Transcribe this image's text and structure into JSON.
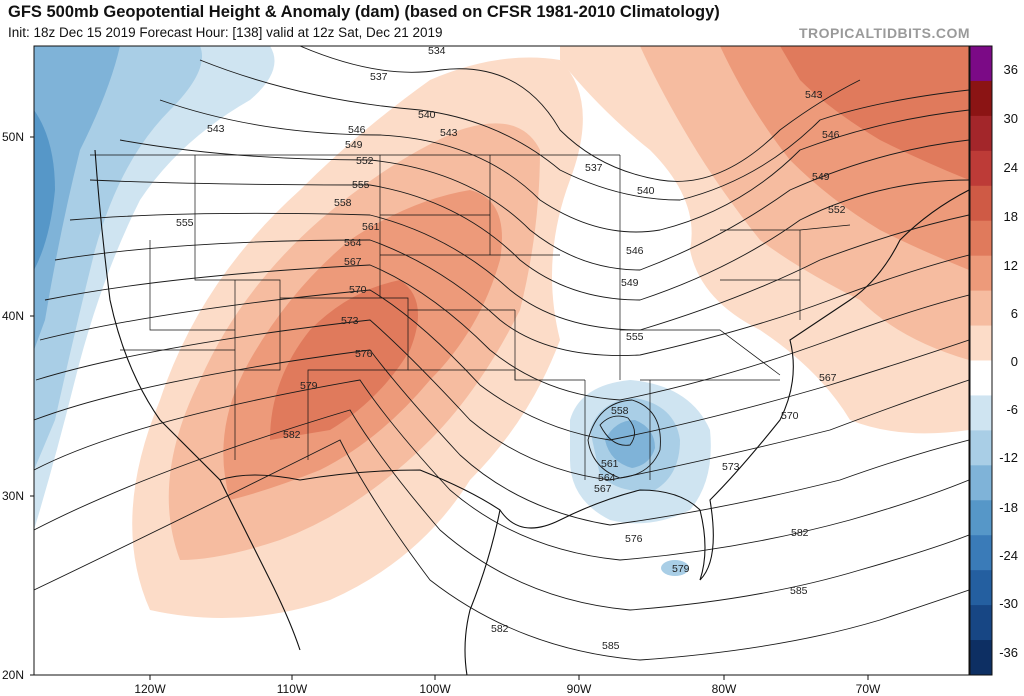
{
  "header": {
    "title": "GFS 500mb Geopotential Height & Anomaly (dam) (based on CFSR 1981-2010 Climatology)",
    "subtitle": "Init: 18z Dec 15 2019   Forecast Hour: [138]   valid at 12z Sat, Dec 21 2019",
    "credit": "TROPICALTIDBITS.COM"
  },
  "map": {
    "lat_labels": [
      "50N",
      "40N",
      "30N",
      "20N"
    ],
    "lon_labels": [
      "120W",
      "110W",
      "100W",
      "90W",
      "80W",
      "70W"
    ],
    "contour_labels": [
      "534",
      "537",
      "540",
      "543",
      "543",
      "543",
      "546",
      "546",
      "549",
      "549",
      "552",
      "552",
      "555",
      "555",
      "555",
      "558",
      "558",
      "561",
      "561",
      "564",
      "564",
      "567",
      "567",
      "567",
      "570",
      "570",
      "573",
      "573",
      "576",
      "576",
      "579",
      "579",
      "582",
      "582",
      "582",
      "585",
      "585",
      "537",
      "540",
      "546",
      "549"
    ]
  },
  "colorbar": {
    "labels": [
      "36",
      "30",
      "24",
      "18",
      "12",
      "6",
      "0",
      "-6",
      "-12",
      "-18",
      "-24",
      "-30",
      "-36"
    ],
    "colors": [
      "#7b0a86",
      "#8b1414",
      "#a3262a",
      "#bd3b37",
      "#cf5a45",
      "#e07a5c",
      "#ed9a7a",
      "#f6bca0",
      "#fcdcc8",
      "#ffffff",
      "#cfe4f1",
      "#a9cee6",
      "#7fb3d8",
      "#5697c8",
      "#3a7bb8",
      "#245fa0",
      "#174684",
      "#0d2f63"
    ]
  }
}
